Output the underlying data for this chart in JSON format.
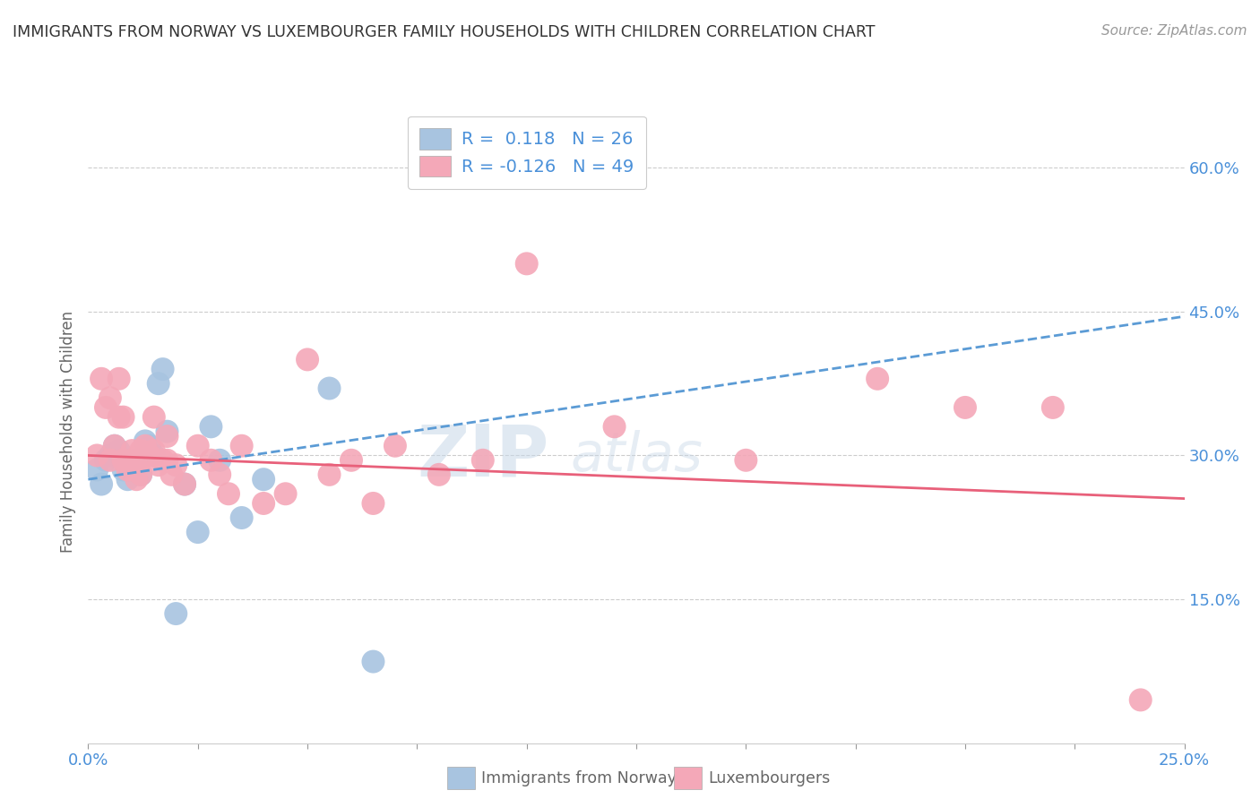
{
  "title": "IMMIGRANTS FROM NORWAY VS LUXEMBOURGER FAMILY HOUSEHOLDS WITH CHILDREN CORRELATION CHART",
  "source": "Source: ZipAtlas.com",
  "ylabel": "Family Households with Children",
  "legend_bottom": [
    "Immigrants from Norway",
    "Luxembourgers"
  ],
  "norway_label": "R =  0.118   N = 26",
  "lux_label": "R = -0.126   N = 49",
  "xlim": [
    0.0,
    0.25
  ],
  "ylim": [
    0.0,
    0.65
  ],
  "yticks_right": [
    0.15,
    0.3,
    0.45,
    0.6
  ],
  "ytick_labels_right": [
    "15.0%",
    "30.0%",
    "45.0%",
    "60.0%"
  ],
  "xticks": [
    0.0,
    0.025,
    0.05,
    0.075,
    0.1,
    0.125,
    0.15,
    0.175,
    0.2,
    0.225,
    0.25
  ],
  "xtick_labels_show": [
    "0.0%",
    "",
    "",
    "",
    "",
    "",
    "",
    "",
    "",
    "",
    "25.0%"
  ],
  "color_norway": "#a8c4e0",
  "color_lux": "#f4a8b8",
  "color_norway_line": "#5b9bd5",
  "color_lux_line": "#e8607a",
  "color_axis_text": "#4a90d9",
  "watermark_zip": "ZIP",
  "watermark_atlas": "atlas",
  "norway_points_x": [
    0.002,
    0.003,
    0.004,
    0.005,
    0.006,
    0.007,
    0.008,
    0.009,
    0.01,
    0.011,
    0.012,
    0.013,
    0.014,
    0.015,
    0.016,
    0.017,
    0.018,
    0.02,
    0.022,
    0.025,
    0.028,
    0.03,
    0.035,
    0.04,
    0.055,
    0.065
  ],
  "norway_points_y": [
    0.285,
    0.27,
    0.295,
    0.3,
    0.31,
    0.305,
    0.285,
    0.275,
    0.29,
    0.295,
    0.28,
    0.315,
    0.31,
    0.3,
    0.375,
    0.39,
    0.325,
    0.135,
    0.27,
    0.22,
    0.33,
    0.295,
    0.235,
    0.275,
    0.37,
    0.085
  ],
  "lux_points_x": [
    0.002,
    0.003,
    0.004,
    0.005,
    0.005,
    0.006,
    0.007,
    0.007,
    0.008,
    0.008,
    0.009,
    0.01,
    0.01,
    0.011,
    0.011,
    0.012,
    0.012,
    0.013,
    0.014,
    0.015,
    0.015,
    0.016,
    0.017,
    0.018,
    0.018,
    0.019,
    0.02,
    0.022,
    0.025,
    0.028,
    0.03,
    0.032,
    0.035,
    0.04,
    0.045,
    0.05,
    0.055,
    0.06,
    0.065,
    0.07,
    0.08,
    0.09,
    0.1,
    0.12,
    0.15,
    0.18,
    0.2,
    0.22,
    0.24
  ],
  "lux_points_y": [
    0.3,
    0.38,
    0.35,
    0.295,
    0.36,
    0.31,
    0.34,
    0.38,
    0.295,
    0.34,
    0.285,
    0.295,
    0.305,
    0.275,
    0.29,
    0.28,
    0.305,
    0.31,
    0.3,
    0.305,
    0.34,
    0.29,
    0.295,
    0.32,
    0.295,
    0.28,
    0.29,
    0.27,
    0.31,
    0.295,
    0.28,
    0.26,
    0.31,
    0.25,
    0.26,
    0.4,
    0.28,
    0.295,
    0.25,
    0.31,
    0.28,
    0.295,
    0.5,
    0.33,
    0.295,
    0.38,
    0.35,
    0.35,
    0.045
  ],
  "norway_line_x": [
    0.0,
    0.25
  ],
  "norway_line_y": [
    0.275,
    0.445
  ],
  "lux_line_x": [
    0.0,
    0.25
  ],
  "lux_line_y": [
    0.3,
    0.255
  ]
}
